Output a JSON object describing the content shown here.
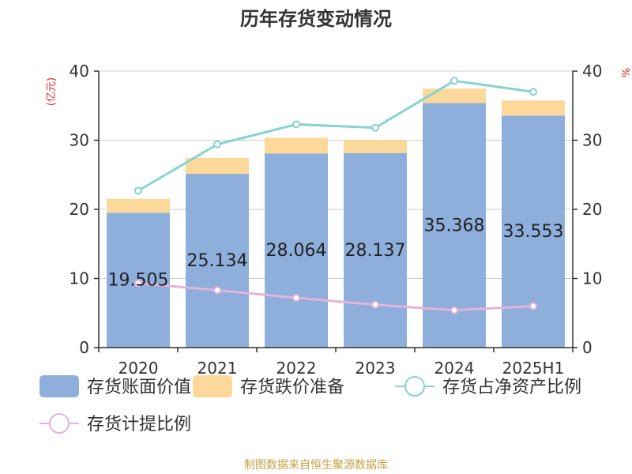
{
  "chart_data": {
    "type": "bar",
    "title": "历年存货变动情况",
    "categories": [
      "2020",
      "2021",
      "2022",
      "2023",
      "2024",
      "2025H1"
    ],
    "y_left": {
      "label": "(亿元)",
      "ticks": [
        0,
        10,
        20,
        30,
        40
      ],
      "ylim": [
        0,
        40
      ]
    },
    "y_right": {
      "label": "%",
      "ticks": [
        0,
        10,
        20,
        30,
        40
      ],
      "ylim": [
        0,
        40
      ]
    },
    "stacked": true,
    "series": [
      {
        "name": "存货账面价值",
        "type": "bar",
        "axis": "left",
        "color": "#8eaedb",
        "values": [
          19.505,
          25.134,
          28.064,
          28.137,
          35.368,
          33.553
        ],
        "data_labels": [
          "19.505",
          "25.134",
          "28.064",
          "28.137",
          "35.368",
          "33.553"
        ]
      },
      {
        "name": "存货跌价准备",
        "type": "bar",
        "axis": "left",
        "color": "#fcd89a",
        "values": [
          2.0,
          2.3,
          2.3,
          1.9,
          2.1,
          2.2
        ]
      },
      {
        "name": "存货占净资产比例",
        "type": "line",
        "axis": "right",
        "color": "#86d3d3",
        "values": [
          22.7,
          29.4,
          32.3,
          31.8,
          38.6,
          37.0
        ]
      },
      {
        "name": "存货计提比例",
        "type": "line",
        "axis": "right",
        "color": "#e5b3d8",
        "values": [
          9.3,
          8.3,
          7.2,
          6.2,
          5.4,
          6.0
        ]
      }
    ],
    "grid": true,
    "legend_position": "bottom"
  },
  "source_text": "制图数据来自恒生聚源数据库"
}
